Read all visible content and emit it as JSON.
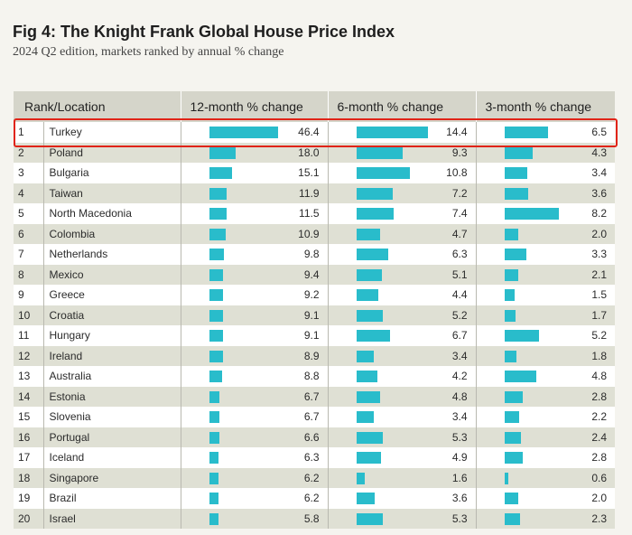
{
  "header": {
    "title": "Fig 4: The Knight Frank Global House Price Index",
    "subtitle": "2024 Q2 edition, markets ranked by annual % change"
  },
  "chart_data": {
    "type": "table",
    "title": "Fig 4: The Knight Frank Global House Price Index",
    "subtitle": "2024 Q2 edition, markets ranked by annual % change",
    "columns": [
      "Rank/Location",
      "12-month % change",
      "6-month % change",
      "3-month % change"
    ],
    "bar_max": {
      "m12": 46.4,
      "m6": 14.4,
      "m3": 8.2
    },
    "highlighted_rank": "1",
    "colors": {
      "bar": "#29bccb",
      "highlight": "#e02418"
    },
    "rows": [
      {
        "rank": "1",
        "location": "Turkey",
        "m12": "46.4",
        "m6": "14.4",
        "m3": "6.5"
      },
      {
        "rank": "2",
        "location": "Poland",
        "m12": "18.0",
        "m6": "9.3",
        "m3": "4.3"
      },
      {
        "rank": "3",
        "location": "Bulgaria",
        "m12": "15.1",
        "m6": "10.8",
        "m3": "3.4"
      },
      {
        "rank": "4",
        "location": "Taiwan",
        "m12": "11.9",
        "m6": "7.2",
        "m3": "3.6"
      },
      {
        "rank": "5",
        "location": "North Macedonia",
        "m12": "11.5",
        "m6": "7.4",
        "m3": "8.2"
      },
      {
        "rank": "6",
        "location": "Colombia",
        "m12": "10.9",
        "m6": "4.7",
        "m3": "2.0"
      },
      {
        "rank": "7",
        "location": "Netherlands",
        "m12": "9.8",
        "m6": "6.3",
        "m3": "3.3"
      },
      {
        "rank": "8",
        "location": "Mexico",
        "m12": "9.4",
        "m6": "5.1",
        "m3": "2.1"
      },
      {
        "rank": "9",
        "location": "Greece",
        "m12": "9.2",
        "m6": "4.4",
        "m3": "1.5"
      },
      {
        "rank": "10",
        "location": "Croatia",
        "m12": "9.1",
        "m6": "5.2",
        "m3": "1.7"
      },
      {
        "rank": "11",
        "location": "Hungary",
        "m12": "9.1",
        "m6": "6.7",
        "m3": "5.2"
      },
      {
        "rank": "12",
        "location": "Ireland",
        "m12": "8.9",
        "m6": "3.4",
        "m3": "1.8"
      },
      {
        "rank": "13",
        "location": "Australia",
        "m12": "8.8",
        "m6": "4.2",
        "m3": "4.8"
      },
      {
        "rank": "14",
        "location": "Estonia",
        "m12": "6.7",
        "m6": "4.8",
        "m3": "2.8"
      },
      {
        "rank": "15",
        "location": "Slovenia",
        "m12": "6.7",
        "m6": "3.4",
        "m3": "2.2"
      },
      {
        "rank": "16",
        "location": "Portugal",
        "m12": "6.6",
        "m6": "5.3",
        "m3": "2.4"
      },
      {
        "rank": "17",
        "location": "Iceland",
        "m12": "6.3",
        "m6": "4.9",
        "m3": "2.8"
      },
      {
        "rank": "18",
        "location": "Singapore",
        "m12": "6.2",
        "m6": "1.6",
        "m3": "0.6"
      },
      {
        "rank": "19",
        "location": "Brazil",
        "m12": "6.2",
        "m6": "3.6",
        "m3": "2.0"
      },
      {
        "rank": "20",
        "location": "Israel",
        "m12": "5.8",
        "m6": "5.3",
        "m3": "2.3"
      }
    ]
  }
}
